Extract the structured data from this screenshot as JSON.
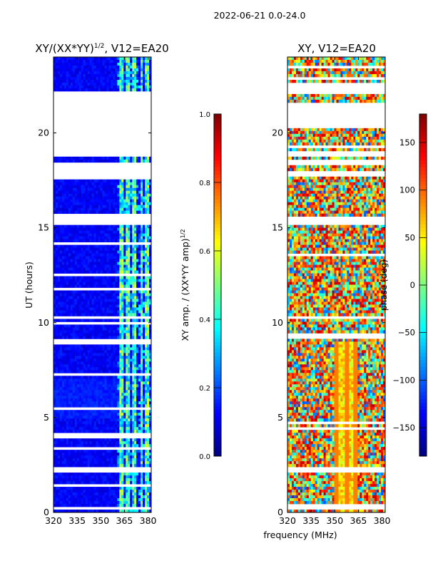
{
  "figure": {
    "suptitle": "2022-06-21 0.0-24.0",
    "shared_xlabel": "frequency (MHz)"
  },
  "colormap": [
    "#00007f",
    "#0000ff",
    "#007fff",
    "#00ffff",
    "#7fff7f",
    "#ffff00",
    "#ff7f00",
    "#ff0000",
    "#7f0000"
  ],
  "chart_data": [
    {
      "type": "heatmap",
      "title": "XY/(XX*YY)",
      "title_sup": "1/2",
      "title_suffix": ", V12=EA20",
      "xlabel": "",
      "ylabel": "UT (hours)",
      "xlim": [
        320,
        382
      ],
      "ylim": [
        0,
        24
      ],
      "xticks": [
        320,
        335,
        350,
        365,
        380
      ],
      "yticks": [
        0,
        5,
        10,
        15,
        20
      ],
      "colorbar": {
        "label": "XY amp. / (XX*YY amp)",
        "label_sup": "1/2",
        "range": [
          0.0,
          1.0
        ],
        "ticks": [
          "0.0",
          "0.2",
          "0.4",
          "0.6",
          "0.8",
          "1.0"
        ],
        "tick_values": [
          0.0,
          0.2,
          0.4,
          0.6,
          0.8,
          1.0
        ]
      },
      "blank_hour_bands": [
        [
          17.6,
          18.5
        ],
        [
          18.8,
          19.3
        ],
        [
          19.5,
          20.0
        ],
        [
          20.1,
          22.0
        ],
        [
          15.1,
          15.7
        ],
        [
          3.9,
          4.2
        ],
        [
          2.1,
          2.4
        ],
        [
          8.8,
          9.1
        ],
        [
          10.2,
          10.4
        ],
        [
          14.1,
          14.25
        ],
        [
          12.5,
          12.6
        ],
        [
          0.15,
          0.35
        ]
      ],
      "bright_channel_ranges_mhz": [
        [
          362,
          365
        ],
        [
          366,
          368
        ],
        [
          370,
          373
        ],
        [
          375,
          377
        ],
        [
          378,
          380
        ]
      ],
      "description_values": "Mostly low amplitude (~0.05-0.15) with bright channels near 362-380 MHz reaching ~0.4-0.6"
    },
    {
      "type": "heatmap",
      "title": "XY, V12=EA20",
      "xlabel": "",
      "ylabel": "",
      "xlim": [
        320,
        382
      ],
      "ylim": [
        0,
        24
      ],
      "xticks": [
        320,
        335,
        350,
        365,
        380
      ],
      "yticks": [
        0,
        5,
        10,
        15,
        20
      ],
      "colorbar": {
        "label": "phase (deg)",
        "range": [
          -180,
          180
        ],
        "ticks": [
          "−150",
          "−100",
          "−50",
          "0",
          "50",
          "100",
          "150"
        ],
        "tick_values": [
          -150,
          -100,
          -50,
          0,
          50,
          100,
          150
        ]
      },
      "blank_hour_bands": [
        [
          22.0,
          22.6
        ],
        [
          20.2,
          21.6
        ],
        [
          18.8,
          19.1
        ],
        [
          18.3,
          18.6
        ],
        [
          17.7,
          18.0
        ],
        [
          15.2,
          15.6
        ],
        [
          9.1,
          9.4
        ],
        [
          4.3,
          4.5
        ],
        [
          2.1,
          2.4
        ],
        [
          0.2,
          0.4
        ]
      ],
      "description_values": "Phase mostly 40-170 deg (orange/red) with noisy blue/cyan patches; 350-365 MHz near 0-9 h show stripes"
    }
  ]
}
